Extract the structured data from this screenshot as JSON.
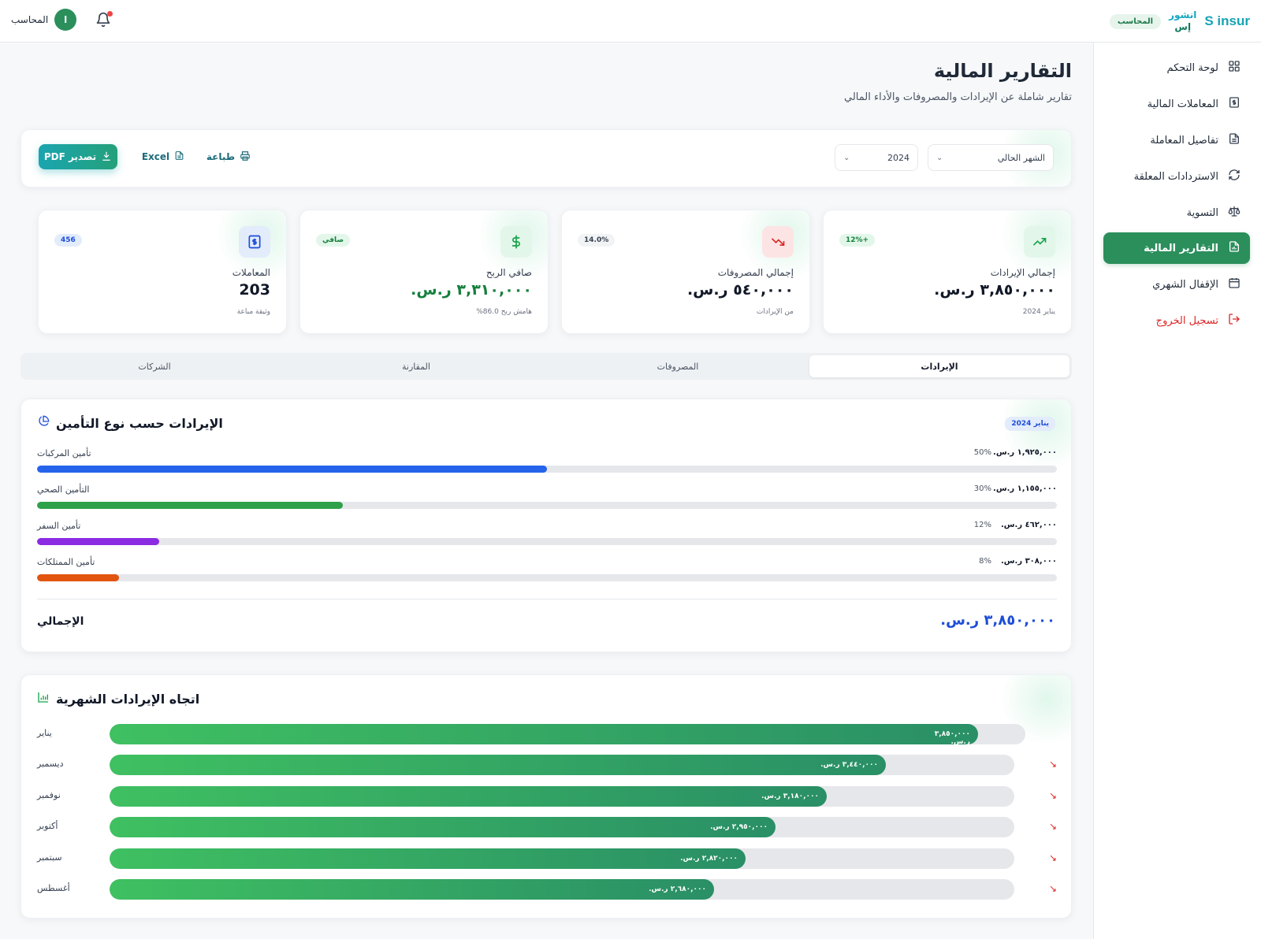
{
  "header": {
    "brand_logo": "S insur",
    "brand_ar_line1": "انشور",
    "brand_ar_line2": "إس",
    "role_badge": "المحاسب",
    "user_initial": "ا",
    "user_name": "المحاسب"
  },
  "sidebar": {
    "items": [
      {
        "label": "لوحة التحكم",
        "icon": "grid-icon"
      },
      {
        "label": "المعاملات المالية",
        "icon": "dollar-doc-icon"
      },
      {
        "label": "تفاصيل المعاملة",
        "icon": "document-icon"
      },
      {
        "label": "الاستردادات المعلقة",
        "icon": "refresh-icon"
      },
      {
        "label": "التسوية",
        "icon": "scale-icon"
      },
      {
        "label": "التقارير المالية",
        "icon": "report-icon",
        "active": true
      },
      {
        "label": "الإقفال الشهري",
        "icon": "calendar-icon"
      }
    ],
    "logout": "تسجيل الخروج"
  },
  "page": {
    "title": "التقارير المالية",
    "subtitle": "تقارير شاملة عن الإيرادات والمصروفات والأداء المالي"
  },
  "toolbar": {
    "period_select": "الشهر الحالي",
    "year_select": "2024",
    "print_label": "طباعة",
    "excel_label": "Excel",
    "pdf_label": "تصدير PDF"
  },
  "stats": [
    {
      "label": "إجمالي الإيرادات",
      "value": "٣,٨٥٠,٠٠٠ ر.س.",
      "badge": "+12%",
      "note": "يناير 2024",
      "color": "#16a34a",
      "icon": "trend-up-icon"
    },
    {
      "label": "إجمالي المصروفات",
      "value": "٥٤٠,٠٠٠ ر.س.",
      "badge": "14.0%",
      "note": "من الإيرادات",
      "color": "#dc2626",
      "icon": "trend-down-icon"
    },
    {
      "label": "صافي الربح",
      "value": "٣,٣١٠,٠٠٠ ر.س.",
      "badge": "صافي",
      "note": "هامش ربح 86.0%",
      "color": "#16a34a",
      "icon": "dollar-icon"
    },
    {
      "label": "المعاملات",
      "value": "203",
      "badge": "456",
      "note": "وثيقة مباعة",
      "color": "#1d4ed8",
      "icon": "receipt-icon"
    }
  ],
  "tabs": [
    "الإيرادات",
    "المصروفات",
    "المقارنة",
    "الشركات"
  ],
  "revenue_by_type": {
    "title": "الإيرادات حسب نوع التأمين",
    "period": "يناير 2024",
    "items": [
      {
        "name": "تأمين المركبات",
        "amount": "١,٩٢٥,٠٠٠ ر.س.",
        "percent": "50%",
        "share": 0.5,
        "color": "#2563eb"
      },
      {
        "name": "التأمين الصحي",
        "amount": "١,١٥٥,٠٠٠ ر.س.",
        "percent": "30%",
        "share": 0.3,
        "color": "#2fa14a"
      },
      {
        "name": "تأمين السفر",
        "amount": "٤٦٢,٠٠٠ ر.س.",
        "percent": "12%",
        "share": 0.12,
        "color": "#8b2be2"
      },
      {
        "name": "تأمين الممتلكات",
        "amount": "٣٠٨,٠٠٠ ر.س.",
        "percent": "8%",
        "share": 0.08,
        "color": "#e2550f"
      }
    ],
    "total_label": "الإجمالي",
    "total_value": "٣,٨٥٠,٠٠٠ ر.س."
  },
  "monthly_trend": {
    "title": "اتجاه الإيرادات الشهرية",
    "rows": [
      {
        "month": "يناير",
        "value": "٣,٨٥٠,٠٠٠ ر.س.",
        "share": 0.96,
        "down": false
      },
      {
        "month": "ديسمبر",
        "value": "٣,٤٤٠,٠٠٠ ر.س.",
        "share": 0.858,
        "down": true
      },
      {
        "month": "نوفمبر",
        "value": "٣,١٨٠,٠٠٠ ر.س.",
        "share": 0.793,
        "down": true
      },
      {
        "month": "أكتوبر",
        "value": "٢,٩٥٠,٠٠٠ ر.س.",
        "share": 0.736,
        "down": true
      },
      {
        "month": "سبتمبر",
        "value": "٢,٨٢٠,٠٠٠ ر.س.",
        "share": 0.703,
        "down": true
      },
      {
        "month": "أغسطس",
        "value": "٢,٦٨٠,٠٠٠ ر.س.",
        "share": 0.668,
        "down": true
      }
    ],
    "down_arrow": "↘"
  }
}
